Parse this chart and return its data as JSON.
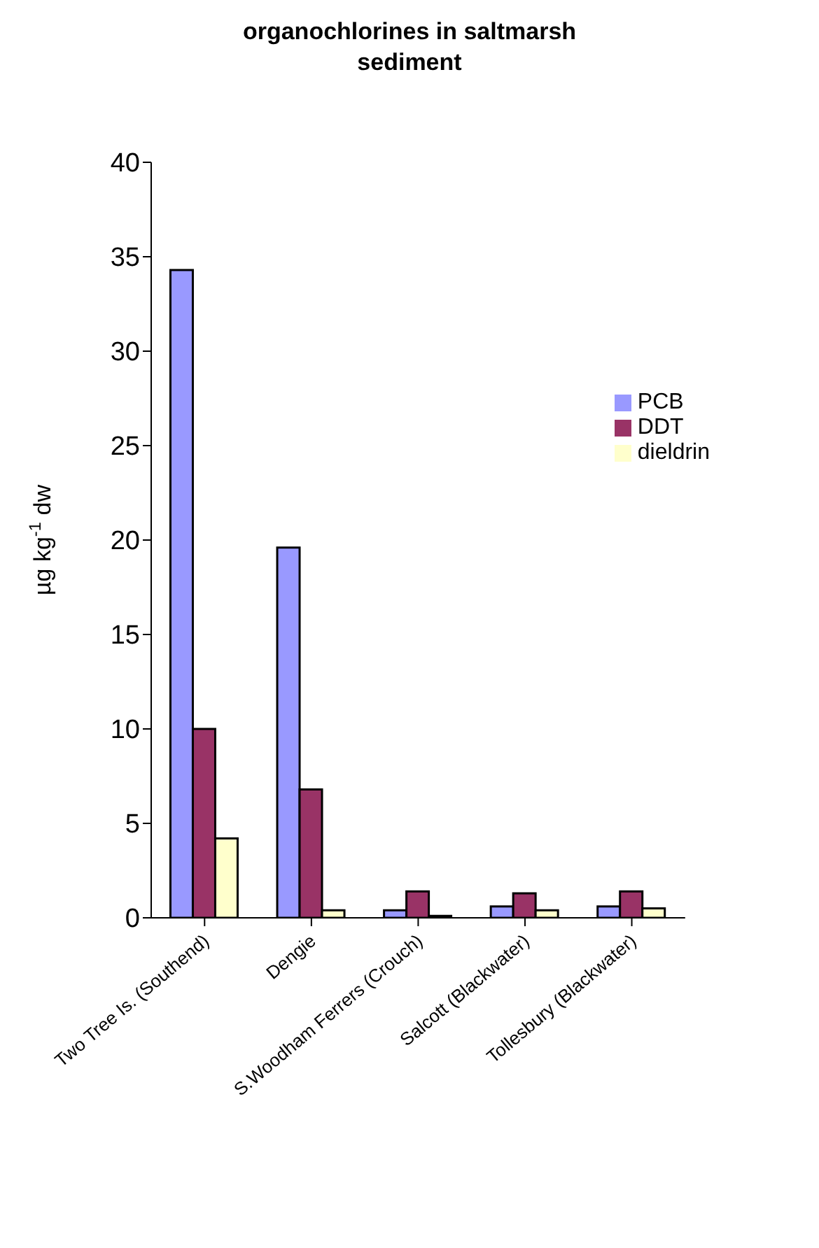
{
  "chart_data": {
    "type": "bar",
    "title": "organochlorines in saltmarsh sediment",
    "ylabel": "µg kg$^{-1}$ dw",
    "categories": [
      "Two Tree Is. (Southend)",
      "Dengie",
      "S.Woodham Ferrers (Crouch)",
      "Salcott (Blackwater)",
      "Tollesbury (Blackwater)"
    ],
    "series": [
      {
        "name": "PCB",
        "color": "#9999ff",
        "values": [
          34.3,
          19.6,
          0.4,
          0.6,
          0.6
        ]
      },
      {
        "name": "DDT",
        "color": "#993366",
        "values": [
          10.0,
          6.8,
          1.4,
          1.3,
          1.4
        ]
      },
      {
        "name": "dieldrin",
        "color": "#ffffcc",
        "values": [
          4.2,
          0.4,
          0.1,
          0.4,
          0.5
        ]
      }
    ],
    "ylim": [
      0,
      40
    ],
    "yticks": [
      0,
      5,
      10,
      15,
      20,
      25,
      30,
      35,
      40
    ],
    "grid": false,
    "legend": "right"
  }
}
